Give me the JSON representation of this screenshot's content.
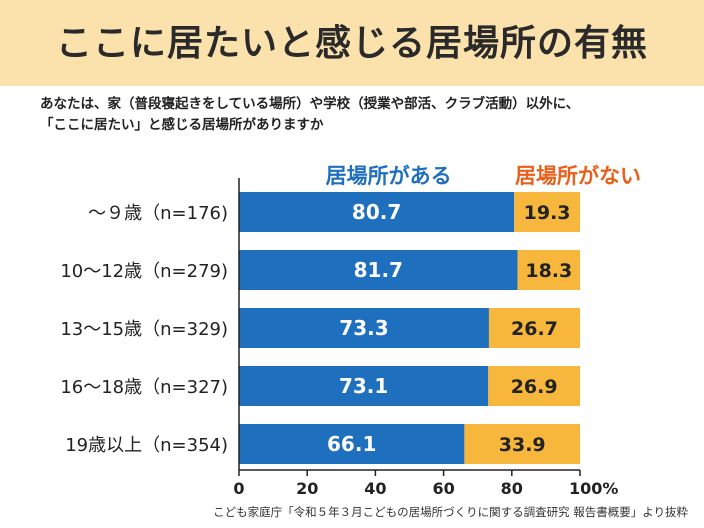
{
  "title": "ここに居たいと感じる居場所の有無",
  "question": {
    "line1": "あなたは、家（普段寝起きをしている場所）や学校（授業や部活、クラブ活動）以外に、",
    "line2": "「ここに居たい」と感じる居場所がありますか"
  },
  "source": "こども家庭庁「令和５年３月こどもの居場所づくりに関する調査研究 報告書概要」より抜粋",
  "colors": {
    "series_yes": "#1f6fbf",
    "series_no": "#f6b73c",
    "label_yes": "#1f6fbf",
    "label_no": "#e8601c",
    "title_band": "#fbe2ad"
  },
  "chart_data": {
    "type": "bar",
    "orientation": "horizontal",
    "stacked": true,
    "categories": [
      "～９歳（n=176)",
      "10～12歳（n=279)",
      "13～15歳（n=329)",
      "16～18歳（n=327)",
      "19歳以上（n=354)"
    ],
    "series": [
      {
        "name": "居場所がある",
        "values": [
          80.7,
          81.7,
          73.3,
          73.1,
          66.1
        ]
      },
      {
        "name": "居場所がない",
        "values": [
          19.3,
          18.3,
          26.7,
          26.9,
          33.9
        ]
      }
    ],
    "x_ticks": [
      "0",
      "20",
      "40",
      "60",
      "80",
      "100%"
    ],
    "xlim": [
      0,
      100
    ],
    "legend": "top, above bars",
    "grid": false
  }
}
